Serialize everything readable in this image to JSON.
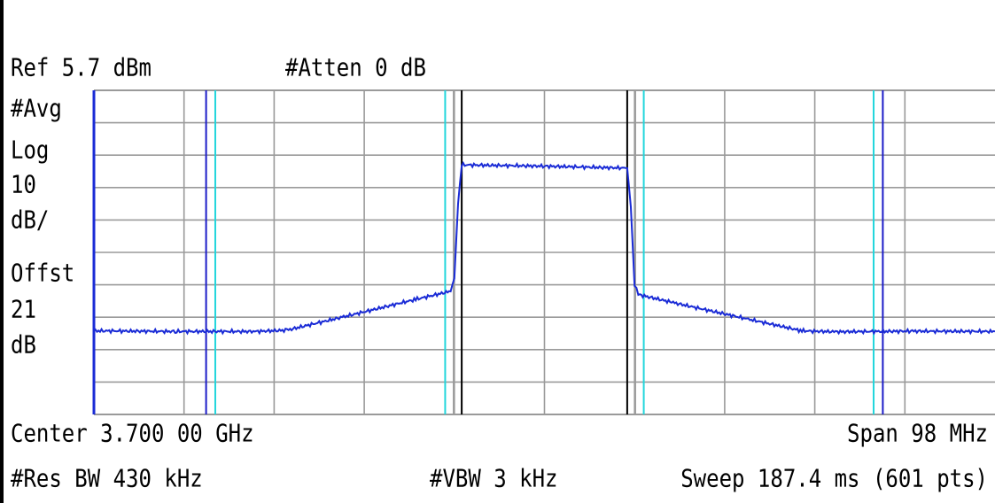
{
  "header": {
    "ref_level": "Ref 5.7 dBm",
    "attenuation": "#Atten 0 dB"
  },
  "side_labels": [
    "#Avg",
    "Log",
    "10",
    "dB/",
    "Offst",
    "21",
    "dB"
  ],
  "footer": {
    "center": "Center 3.700 00 GHz",
    "span": "Span 98 MHz",
    "res_bw": "#Res BW 430 kHz",
    "vbw": "#VBW 3 kHz",
    "sweep": "Sweep 187.4 ms (601 pts)"
  },
  "colors": {
    "trace": "#1a2bd6",
    "grid": "#9a9a9a",
    "blue_marker": "#1c1cc8",
    "cyan_marker": "#22d6dc",
    "gray_marker": "#9a9a9a",
    "black_marker": "#000000"
  },
  "chart_data": {
    "type": "line",
    "x_unit": "MHz offset from center",
    "y_unit": "dB relative to reference",
    "xlim": [
      -49,
      49
    ],
    "ylim": [
      -100,
      0
    ],
    "grid": true,
    "x_divisions": 10,
    "y_divisions": 10,
    "series": [
      {
        "x": [
          -49,
          -40,
          -31.5,
          -28,
          -22,
          -14,
          -10.2,
          -9.8,
          -9.4,
          -9.0,
          0,
          9.0,
          9.4,
          9.8,
          10.2,
          14,
          22,
          28,
          31.5,
          40,
          49
        ],
        "y": [
          -74.2,
          -74.4,
          -74.4,
          -74.0,
          -70.0,
          -64.5,
          -62.0,
          -58.0,
          -35.0,
          -23.0,
          -23.4,
          -24.0,
          -36.0,
          -60.0,
          -63.0,
          -65.5,
          -70.5,
          -74.2,
          -74.5,
          -74.3,
          -74.4
        ]
      }
    ],
    "vertical_markers": [
      {
        "x": -36.8,
        "kind": "blue"
      },
      {
        "x": -35.8,
        "kind": "cyan"
      },
      {
        "x": -10.8,
        "kind": "cyan"
      },
      {
        "x": -9.9,
        "kind": "gray"
      },
      {
        "x": -9.0,
        "kind": "black"
      },
      {
        "x": 9.0,
        "kind": "black"
      },
      {
        "x": 9.9,
        "kind": "gray"
      },
      {
        "x": 10.8,
        "kind": "cyan"
      },
      {
        "x": 35.8,
        "kind": "cyan"
      },
      {
        "x": 36.8,
        "kind": "blue"
      }
    ]
  }
}
